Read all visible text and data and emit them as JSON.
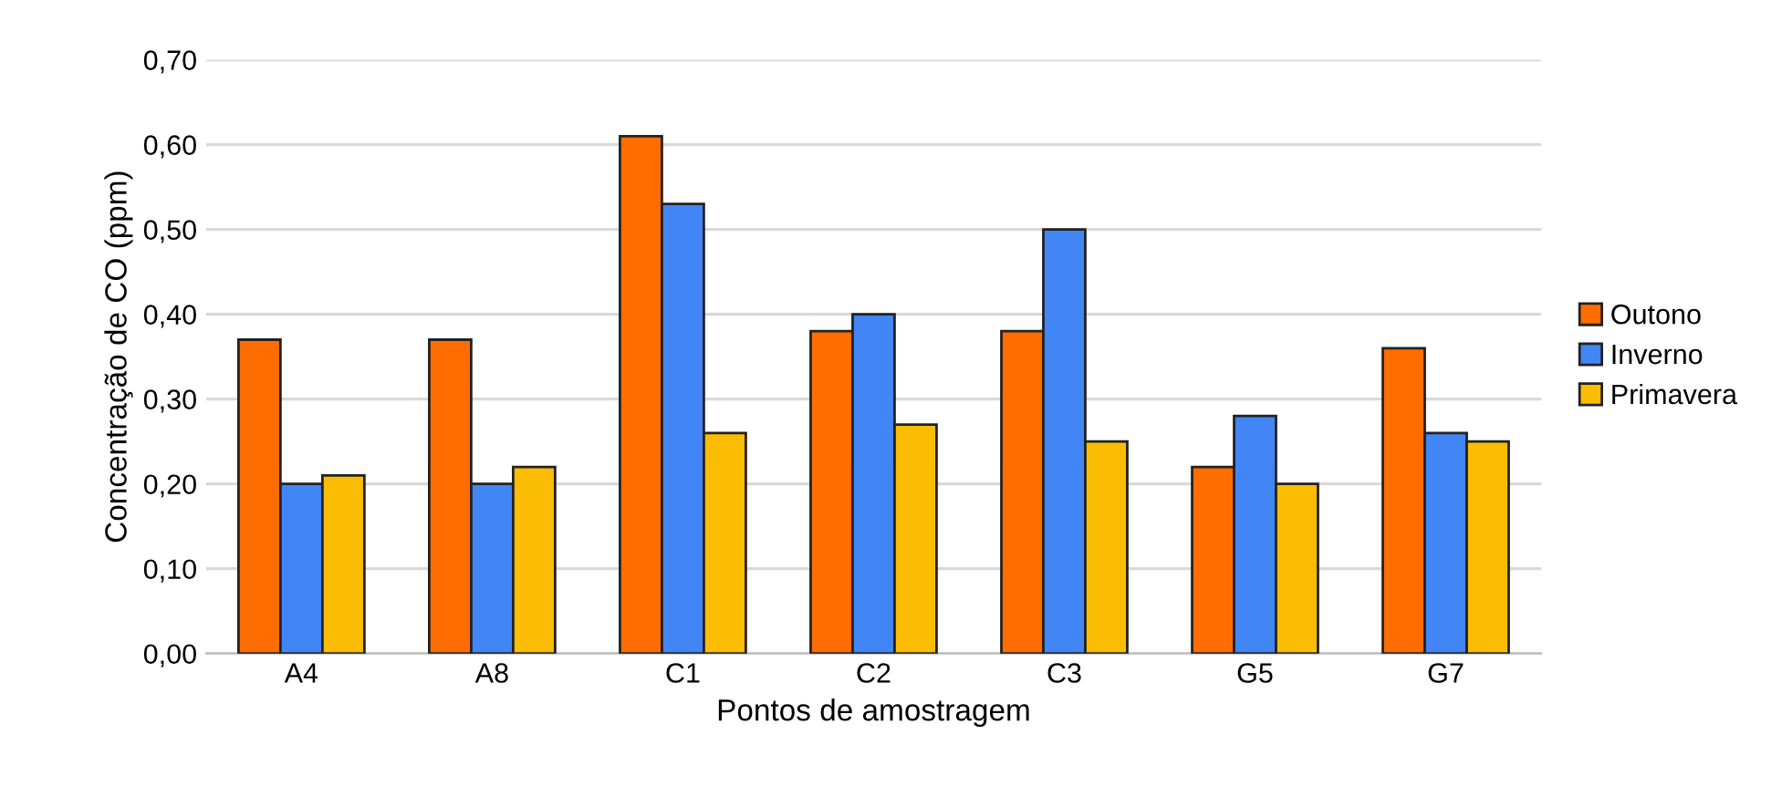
{
  "chart_data": {
    "type": "bar",
    "xlabel": "Pontos de amostragem",
    "ylabel": "Concentração de CO (ppm)",
    "categories": [
      "A4",
      "A8",
      "C1",
      "C2",
      "C3",
      "G5",
      "G7"
    ],
    "series": [
      {
        "name": "Outono",
        "color": "#ff6d01",
        "values": [
          0.37,
          0.37,
          0.61,
          0.38,
          0.38,
          0.22,
          0.36
        ]
      },
      {
        "name": "Inverno",
        "color": "#4285f4",
        "values": [
          0.2,
          0.2,
          0.53,
          0.4,
          0.5,
          0.28,
          0.26
        ]
      },
      {
        "name": "Primavera",
        "color": "#fbbc04",
        "values": [
          0.21,
          0.22,
          0.26,
          0.27,
          0.25,
          0.2,
          0.25
        ]
      }
    ],
    "ylim": [
      0,
      0.7
    ],
    "yticks": [
      {
        "value": 0,
        "label": "0,00"
      },
      {
        "value": 0.1,
        "label": "0,10"
      },
      {
        "value": 0.2,
        "label": "0,20"
      },
      {
        "value": 0.3,
        "label": "0,30"
      },
      {
        "value": 0.4,
        "label": "0,40"
      },
      {
        "value": 0.5,
        "label": "0,50"
      },
      {
        "value": 0.6,
        "label": "0,60"
      },
      {
        "value": 0.7,
        "label": "0,70"
      }
    ],
    "grid": "y",
    "legend": "right"
  }
}
